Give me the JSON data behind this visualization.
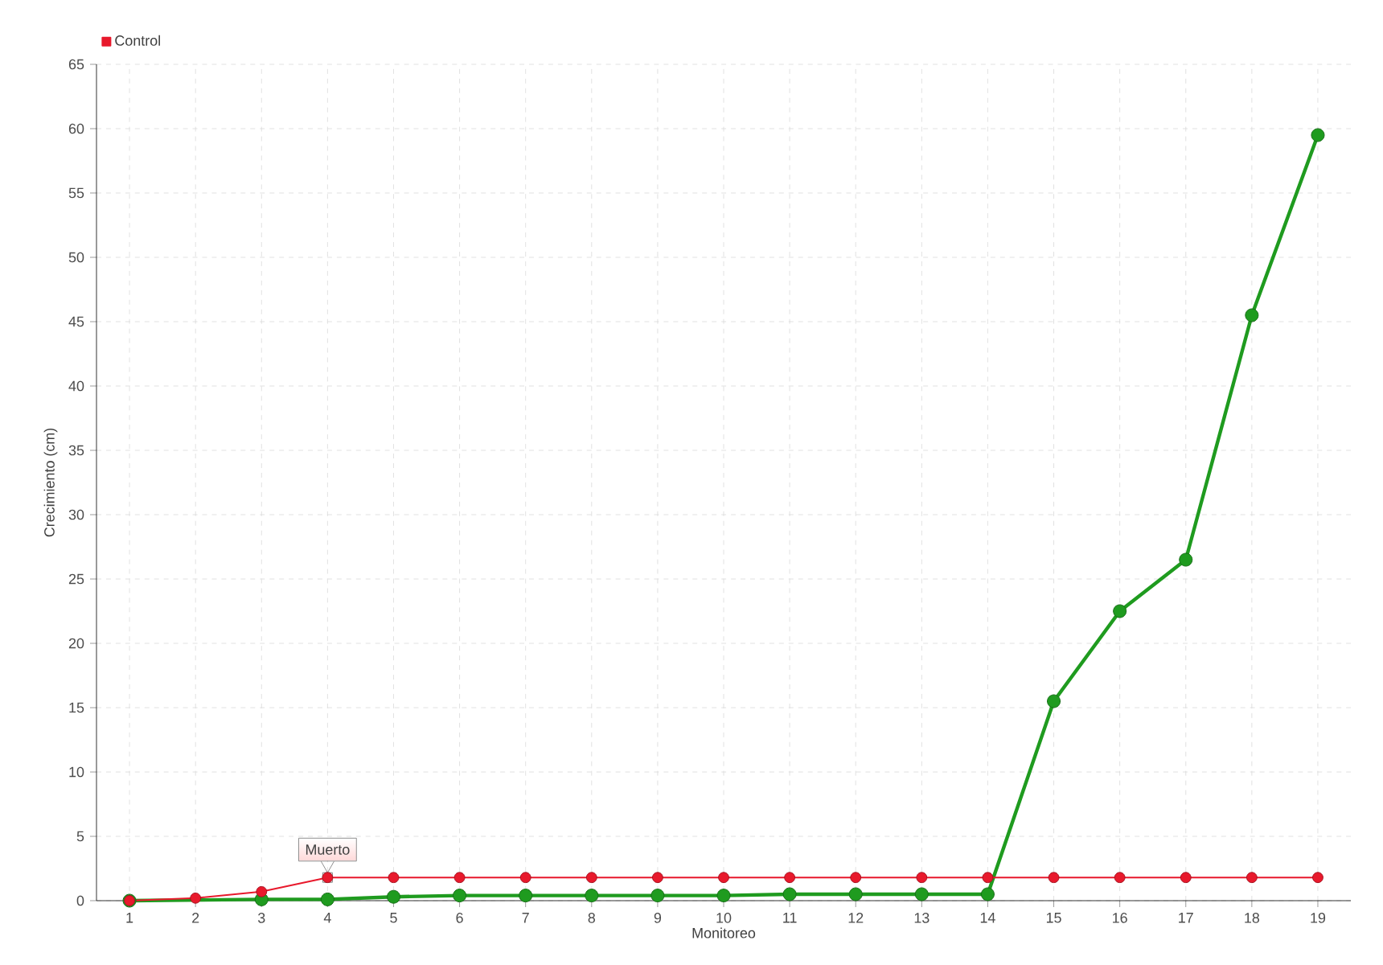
{
  "chart_data": {
    "type": "line",
    "xlabel": "Monitoreo",
    "ylabel": "Crecimiento (cm)",
    "categories": [
      "1",
      "2",
      "3",
      "4",
      "5",
      "6",
      "7",
      "8",
      "9",
      "10",
      "11",
      "12",
      "13",
      "14",
      "15",
      "16",
      "17",
      "18",
      "19"
    ],
    "series": [
      {
        "color": "#1f9b1f",
        "values": [
          0,
          null,
          0.1,
          0.1,
          0.3,
          0.4,
          0.4,
          0.4,
          0.4,
          0.4,
          0.5,
          0.5,
          0.5,
          0.5,
          15.5,
          22.5,
          26.5,
          45.5,
          59.5
        ]
      },
      {
        "name": "Control",
        "color": "#e8192c",
        "values": [
          0,
          0.2,
          0.7,
          1.8,
          1.8,
          1.8,
          1.8,
          1.8,
          1.8,
          1.8,
          1.8,
          1.8,
          1.8,
          1.8,
          1.8,
          1.8,
          1.8,
          1.8,
          1.8
        ]
      }
    ],
    "ylim": [
      0,
      65
    ],
    "yticks": [
      0,
      5,
      10,
      15,
      20,
      25,
      30,
      35,
      40,
      45,
      50,
      55,
      60,
      65
    ],
    "grid": true,
    "legend": "top left",
    "marker": "circle",
    "line_style": "solid",
    "annotations": [
      {
        "text": "Muerto",
        "x": "4",
        "y": 1.8
      }
    ]
  }
}
